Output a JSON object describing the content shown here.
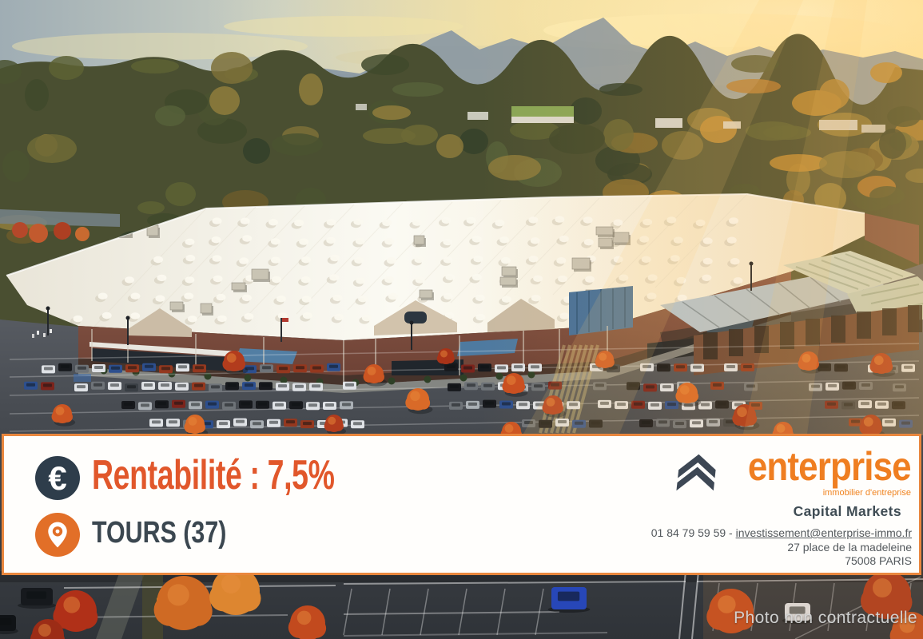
{
  "banner": {
    "rentability": "Rentabilité : 7,5%",
    "location": "TOURS (37)"
  },
  "logo": {
    "brand": "enterprise",
    "tagline": "immobilier d'entreprise",
    "division": "Capital Markets"
  },
  "contact": {
    "phone": "01 84 79 59 59",
    "separator": " - ",
    "email": "investissement@enterprise-immo.fr",
    "address_line1": "27 place de la madeleine",
    "address_line2": "75008 PARIS"
  },
  "photo": {
    "disclaimer": "Photo non contractuelle"
  },
  "icons": {
    "euro": "€",
    "pin": "location-pin",
    "logo_mark": "double-chevron-up"
  },
  "colors": {
    "accent": "#e1572b",
    "logo_orange": "#ef7e21",
    "slate": "#2e3d4b",
    "border": "#e9873e",
    "text_gray": "#53585c",
    "disclaimer": "#d6d7d7"
  }
}
